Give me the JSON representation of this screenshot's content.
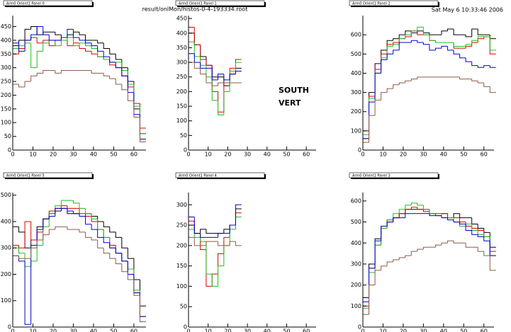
{
  "header": {
    "file": "result/onlMon/histos-0-4-193334.root",
    "date": "Sat May  6 10:33:46 2006"
  },
  "labels": [
    "SOUTH",
    "VERT"
  ],
  "chart_data": [
    {
      "type": "histogram",
      "title": "Arm0 Orient1 Panel 0",
      "bins": [
        0,
        3,
        6,
        9,
        12,
        15,
        18,
        21,
        24,
        27,
        30,
        33,
        36,
        39,
        42,
        45,
        48,
        51,
        54,
        57,
        60,
        63,
        66
      ],
      "xlim": [
        0,
        66
      ],
      "ylim": [
        0,
        490
      ],
      "xticks": [
        0,
        10,
        20,
        30,
        40,
        50,
        60
      ],
      "yticks": [
        0,
        50,
        100,
        150,
        200,
        250,
        300,
        350,
        400,
        450
      ],
      "series": [
        {
          "color": "#000000",
          "values": [
            380,
            400,
            440,
            450,
            420,
            430,
            430,
            420,
            410,
            420,
            430,
            420,
            400,
            400,
            390,
            370,
            350,
            330,
            300,
            250,
            150,
            60
          ]
        },
        {
          "color": "#dd0000",
          "values": [
            350,
            370,
            400,
            410,
            390,
            400,
            380,
            400,
            410,
            380,
            390,
            370,
            360,
            350,
            340,
            330,
            310,
            300,
            270,
            230,
            170,
            80
          ]
        },
        {
          "color": "#22bb22",
          "values": [
            370,
            380,
            390,
            300,
            360,
            390,
            400,
            380,
            400,
            410,
            380,
            390,
            380,
            370,
            340,
            330,
            320,
            320,
            290,
            240,
            160,
            60
          ]
        },
        {
          "color": "#0000cc",
          "values": [
            390,
            360,
            400,
            420,
            450,
            420,
            400,
            400,
            410,
            440,
            410,
            400,
            390,
            380,
            360,
            340,
            320,
            300,
            270,
            210,
            130,
            40
          ]
        },
        {
          "color": "#8c5a46",
          "values": [
            240,
            230,
            250,
            270,
            280,
            290,
            290,
            280,
            290,
            290,
            290,
            290,
            290,
            280,
            280,
            270,
            260,
            240,
            220,
            180,
            120,
            30
          ]
        }
      ]
    },
    {
      "type": "histogram",
      "title": "Arm0 Orient1 Panel 1",
      "bins": [
        0,
        3,
        6,
        9,
        12,
        15,
        18,
        21,
        24,
        27
      ],
      "xlim": [
        0,
        65
      ],
      "ylim": [
        0,
        460
      ],
      "xticks": [
        0,
        10,
        20,
        30,
        40,
        50,
        60
      ],
      "yticks": [
        0,
        50,
        100,
        150,
        200,
        250,
        300,
        350,
        400,
        450
      ],
      "series": [
        {
          "color": "#000000",
          "values": [
            400,
            360,
            320,
            290,
            250,
            250,
            220,
            260,
            280
          ]
        },
        {
          "color": "#dd0000",
          "values": [
            420,
            360,
            310,
            290,
            200,
            130,
            230,
            280,
            310
          ]
        },
        {
          "color": "#22bb22",
          "values": [
            370,
            320,
            290,
            250,
            170,
            120,
            200,
            270,
            300
          ]
        },
        {
          "color": "#0000cc",
          "values": [
            330,
            300,
            280,
            280,
            240,
            260,
            240,
            260,
            270
          ]
        },
        {
          "color": "#8c5a46",
          "values": [
            300,
            280,
            260,
            230,
            220,
            230,
            230,
            230,
            230
          ]
        }
      ]
    },
    {
      "type": "histogram",
      "title": "Arm0 Orient1 Panel 2",
      "bins": [
        0,
        3,
        6,
        9,
        12,
        15,
        18,
        21,
        24,
        27,
        30,
        33,
        36,
        39,
        42,
        45,
        48,
        51,
        54,
        57,
        60,
        63,
        66
      ],
      "xlim": [
        0,
        65
      ],
      "ylim": [
        0,
        700
      ],
      "xticks": [
        0,
        10,
        20,
        30,
        40,
        50,
        60
      ],
      "yticks": [
        0,
        100,
        200,
        300,
        400,
        500,
        600
      ],
      "series": [
        {
          "color": "#000000",
          "values": [
            100,
            300,
            450,
            520,
            570,
            580,
            600,
            620,
            610,
            620,
            610,
            600,
            600,
            620,
            630,
            600,
            600,
            590,
            630,
            600,
            600,
            580
          ]
        },
        {
          "color": "#dd0000",
          "values": [
            60,
            280,
            420,
            500,
            550,
            560,
            580,
            590,
            620,
            600,
            600,
            570,
            560,
            560,
            560,
            530,
            530,
            540,
            560,
            580,
            590,
            500
          ]
        },
        {
          "color": "#22bb22",
          "values": [
            80,
            270,
            400,
            480,
            540,
            550,
            580,
            600,
            620,
            640,
            600,
            570,
            560,
            560,
            560,
            540,
            540,
            550,
            570,
            590,
            590,
            520
          ]
        },
        {
          "color": "#0000cc",
          "values": [
            60,
            250,
            400,
            470,
            500,
            520,
            560,
            560,
            570,
            560,
            550,
            520,
            530,
            540,
            520,
            500,
            480,
            460,
            440,
            430,
            440,
            430
          ]
        },
        {
          "color": "#8c5a46",
          "values": [
            40,
            180,
            260,
            300,
            320,
            340,
            350,
            360,
            370,
            380,
            380,
            380,
            380,
            380,
            380,
            380,
            370,
            370,
            360,
            350,
            330,
            300
          ]
        }
      ]
    },
    {
      "type": "histogram",
      "title": "Arm0 Orient1 Panel 5",
      "bins": [
        0,
        3,
        6,
        9,
        12,
        15,
        18,
        21,
        24,
        27,
        30,
        33,
        36,
        39,
        42,
        45,
        48,
        51,
        54,
        57,
        60,
        63,
        66
      ],
      "xlim": [
        0,
        66
      ],
      "ylim": [
        0,
        510
      ],
      "xticks": [
        0,
        10,
        20,
        30,
        40,
        50,
        60
      ],
      "yticks": [
        0,
        100,
        200,
        300,
        400,
        500
      ],
      "series": [
        {
          "color": "#000000",
          "values": [
            380,
            360,
            300,
            330,
            380,
            410,
            430,
            440,
            450,
            430,
            430,
            420,
            430,
            420,
            400,
            380,
            360,
            340,
            300,
            260,
            180,
            80
          ]
        },
        {
          "color": "#dd0000",
          "values": [
            310,
            300,
            400,
            330,
            360,
            410,
            440,
            450,
            460,
            450,
            450,
            430,
            420,
            400,
            370,
            340,
            310,
            280,
            250,
            200,
            130,
            40
          ]
        },
        {
          "color": "#22bb22",
          "values": [
            300,
            280,
            230,
            250,
            310,
            380,
            430,
            460,
            480,
            480,
            470,
            450,
            430,
            410,
            370,
            340,
            300,
            280,
            250,
            220,
            140,
            40
          ]
        },
        {
          "color": "#0000cc",
          "values": [
            270,
            250,
            10,
            310,
            370,
            410,
            420,
            450,
            450,
            440,
            430,
            420,
            390,
            370,
            340,
            320,
            300,
            280,
            250,
            200,
            130,
            40
          ]
        },
        {
          "color": "#8c5a46",
          "values": [
            270,
            260,
            260,
            300,
            330,
            350,
            370,
            380,
            380,
            370,
            370,
            360,
            340,
            330,
            300,
            280,
            260,
            240,
            210,
            180,
            120,
            20
          ]
        }
      ]
    },
    {
      "type": "histogram",
      "title": "Arm0 Orient1 Panel 4",
      "bins": [
        0,
        3,
        6,
        9,
        12,
        15,
        18,
        21,
        24,
        27
      ],
      "xlim": [
        0,
        65
      ],
      "ylim": [
        0,
        330
      ],
      "xticks": [
        0,
        10,
        20,
        30,
        40,
        50,
        60
      ],
      "yticks": [
        0,
        50,
        100,
        150,
        200,
        250,
        300
      ],
      "series": [
        {
          "color": "#000000",
          "values": [
            250,
            230,
            240,
            230,
            230,
            230,
            240,
            250,
            290
          ]
        },
        {
          "color": "#dd0000",
          "values": [
            260,
            230,
            190,
            100,
            130,
            180,
            220,
            250,
            280
          ]
        },
        {
          "color": "#22bb22",
          "values": [
            240,
            220,
            210,
            130,
            100,
            150,
            200,
            240,
            270
          ]
        },
        {
          "color": "#0000cc",
          "values": [
            270,
            230,
            220,
            220,
            220,
            230,
            230,
            250,
            300
          ]
        },
        {
          "color": "#8c5a46",
          "values": [
            220,
            200,
            200,
            210,
            210,
            200,
            200,
            210,
            200
          ]
        }
      ]
    },
    {
      "type": "histogram",
      "title": "Arm0 Orient1 Panel 3",
      "bins": [
        0,
        3,
        6,
        9,
        12,
        15,
        18,
        21,
        24,
        27,
        30,
        33,
        36,
        39,
        42,
        45,
        48,
        51,
        54,
        57,
        60,
        63,
        66
      ],
      "xlim": [
        0,
        65
      ],
      "ylim": [
        0,
        640
      ],
      "xticks": [
        0,
        10,
        20,
        30,
        40,
        50,
        60
      ],
      "yticks": [
        0,
        100,
        200,
        300,
        400,
        500,
        600
      ],
      "series": [
        {
          "color": "#000000",
          "values": [
            140,
            300,
            420,
            480,
            510,
            520,
            540,
            560,
            560,
            560,
            560,
            540,
            540,
            540,
            520,
            540,
            520,
            520,
            490,
            470,
            450,
            380
          ]
        },
        {
          "color": "#dd0000",
          "values": [
            100,
            280,
            390,
            470,
            500,
            520,
            540,
            560,
            570,
            560,
            550,
            540,
            530,
            540,
            520,
            520,
            500,
            480,
            470,
            460,
            430,
            360
          ]
        },
        {
          "color": "#22bb22",
          "values": [
            90,
            260,
            390,
            470,
            510,
            540,
            560,
            580,
            590,
            580,
            560,
            540,
            540,
            520,
            520,
            500,
            480,
            490,
            460,
            440,
            430,
            340
          ]
        },
        {
          "color": "#0000cc",
          "values": [
            120,
            280,
            410,
            480,
            500,
            520,
            520,
            540,
            540,
            540,
            540,
            530,
            530,
            520,
            510,
            500,
            490,
            460,
            440,
            430,
            410,
            340
          ]
        },
        {
          "color": "#8c5a46",
          "values": [
            60,
            200,
            270,
            290,
            310,
            320,
            330,
            340,
            360,
            370,
            380,
            380,
            390,
            400,
            410,
            400,
            400,
            380,
            380,
            360,
            340,
            270
          ]
        }
      ]
    }
  ]
}
